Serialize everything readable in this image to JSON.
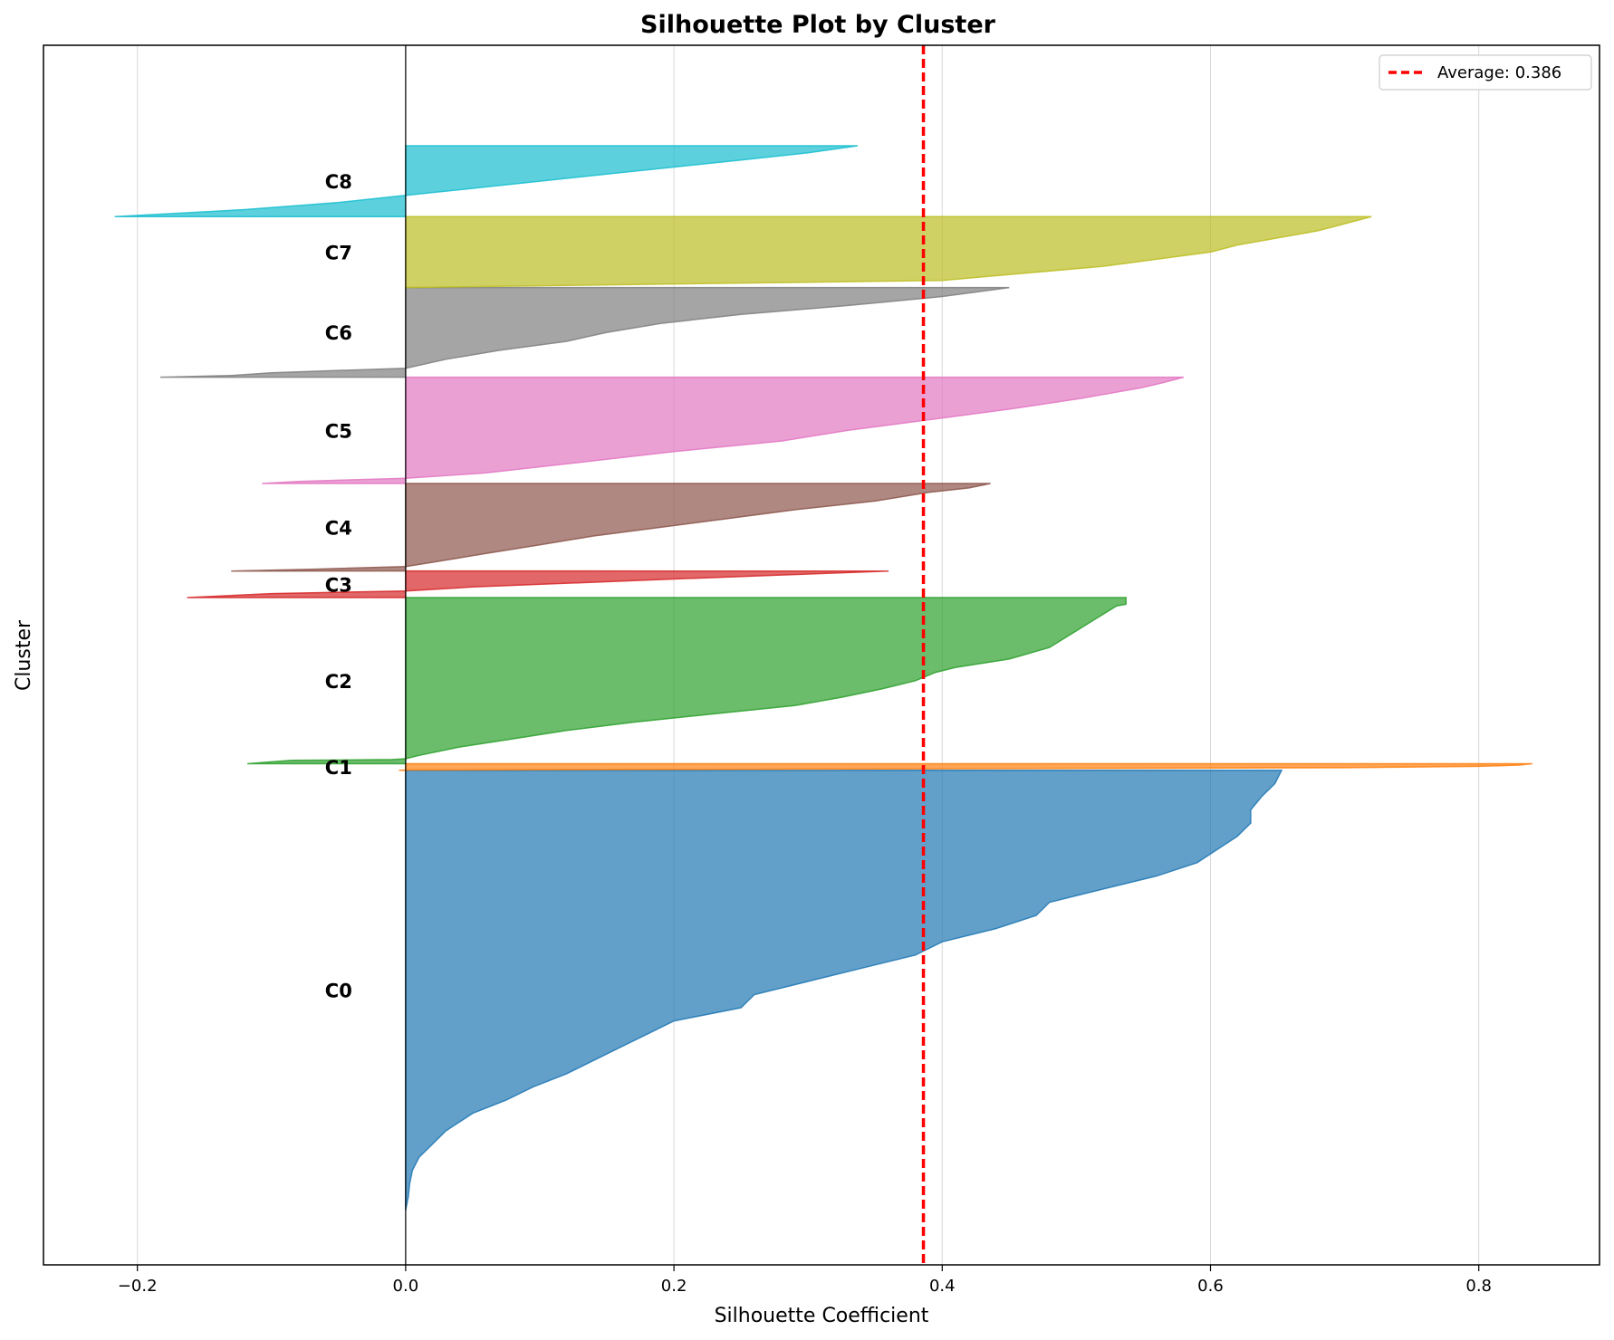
{
  "chart_data": {
    "type": "area",
    "title": "Silhouette Plot by Cluster",
    "xlabel": "Silhouette Coefficient",
    "ylabel": "Cluster",
    "xlim": [
      -0.27,
      0.89
    ],
    "x_ticks": [
      -0.2,
      0.0,
      0.2,
      0.4,
      0.6,
      0.8
    ],
    "x_tick_labels": [
      "−0.2",
      "0.0",
      "0.2",
      "0.4",
      "0.6",
      "0.8"
    ],
    "grid": "vertical",
    "legend_position": "upper right",
    "average": {
      "value": 0.386,
      "label": "Average: 0.386",
      "color": "#ff0000",
      "style": "dashed"
    },
    "clusters": [
      {
        "name": "C0",
        "color": "#1f77b4",
        "y_start": 0.0,
        "y_end": 0.397,
        "profile": [
          [
            0.0,
            0.653
          ],
          [
            0.03,
            0.648
          ],
          [
            0.06,
            0.638
          ],
          [
            0.09,
            0.63
          ],
          [
            0.12,
            0.63
          ],
          [
            0.15,
            0.62
          ],
          [
            0.18,
            0.605
          ],
          [
            0.21,
            0.59
          ],
          [
            0.24,
            0.56
          ],
          [
            0.27,
            0.52
          ],
          [
            0.3,
            0.48
          ],
          [
            0.33,
            0.47
          ],
          [
            0.36,
            0.44
          ],
          [
            0.39,
            0.4
          ],
          [
            0.42,
            0.38
          ],
          [
            0.45,
            0.34
          ],
          [
            0.48,
            0.3
          ],
          [
            0.51,
            0.26
          ],
          [
            0.54,
            0.25
          ],
          [
            0.57,
            0.2
          ],
          [
            0.6,
            0.18
          ],
          [
            0.63,
            0.16
          ],
          [
            0.66,
            0.14
          ],
          [
            0.69,
            0.12
          ],
          [
            0.72,
            0.095
          ],
          [
            0.75,
            0.075
          ],
          [
            0.78,
            0.05
          ],
          [
            0.8,
            0.04
          ],
          [
            0.82,
            0.03
          ],
          [
            0.85,
            0.02
          ],
          [
            0.88,
            0.01
          ],
          [
            0.91,
            0.005
          ],
          [
            0.94,
            0.003
          ],
          [
            0.97,
            0.002
          ],
          [
            1.0,
            0.0
          ]
        ]
      },
      {
        "name": "C1",
        "color": "#ff7f0e",
        "y_start": 0.397,
        "y_end": 0.403,
        "profile": [
          [
            0.0,
            0.84
          ],
          [
            0.2,
            0.83
          ],
          [
            0.4,
            0.8
          ],
          [
            0.6,
            0.7
          ],
          [
            0.8,
            0.3
          ],
          [
            0.95,
            0.0
          ],
          [
            1.0,
            -0.005
          ]
        ]
      },
      {
        "name": "C2",
        "color": "#2ca02c",
        "y_start": 0.403,
        "y_end": 0.553,
        "profile": [
          [
            0.0,
            0.537
          ],
          [
            0.04,
            0.537
          ],
          [
            0.05,
            0.53
          ],
          [
            0.1,
            0.52
          ],
          [
            0.15,
            0.51
          ],
          [
            0.2,
            0.5
          ],
          [
            0.25,
            0.49
          ],
          [
            0.3,
            0.48
          ],
          [
            0.37,
            0.45
          ],
          [
            0.42,
            0.41
          ],
          [
            0.45,
            0.395
          ],
          [
            0.5,
            0.38
          ],
          [
            0.55,
            0.355
          ],
          [
            0.6,
            0.325
          ],
          [
            0.65,
            0.29
          ],
          [
            0.7,
            0.23
          ],
          [
            0.75,
            0.17
          ],
          [
            0.8,
            0.12
          ],
          [
            0.85,
            0.08
          ],
          [
            0.9,
            0.04
          ],
          [
            0.95,
            0.01
          ],
          [
            0.97,
            0.0
          ],
          [
            0.975,
            -0.01
          ],
          [
            0.98,
            -0.085
          ],
          [
            1.0,
            -0.118
          ]
        ]
      },
      {
        "name": "C3",
        "color": "#d62728",
        "y_start": 0.553,
        "y_end": 0.577,
        "profile": [
          [
            0.0,
            0.36
          ],
          [
            0.3,
            0.2
          ],
          [
            0.6,
            0.05
          ],
          [
            0.75,
            0.0
          ],
          [
            0.85,
            -0.1
          ],
          [
            1.0,
            -0.163
          ]
        ]
      },
      {
        "name": "C4",
        "color": "#8c564b",
        "y_start": 0.577,
        "y_end": 0.656,
        "profile": [
          [
            0.0,
            0.436
          ],
          [
            0.05,
            0.42
          ],
          [
            0.1,
            0.39
          ],
          [
            0.2,
            0.35
          ],
          [
            0.3,
            0.29
          ],
          [
            0.4,
            0.24
          ],
          [
            0.5,
            0.19
          ],
          [
            0.6,
            0.14
          ],
          [
            0.7,
            0.1
          ],
          [
            0.8,
            0.06
          ],
          [
            0.9,
            0.02
          ],
          [
            0.95,
            0.0
          ],
          [
            0.98,
            -0.07
          ],
          [
            1.0,
            -0.13
          ]
        ]
      },
      {
        "name": "C5",
        "color": "#e377c2",
        "y_start": 0.656,
        "y_end": 0.752,
        "profile": [
          [
            0.0,
            0.58
          ],
          [
            0.05,
            0.565
          ],
          [
            0.1,
            0.548
          ],
          [
            0.2,
            0.503
          ],
          [
            0.3,
            0.45
          ],
          [
            0.4,
            0.39
          ],
          [
            0.5,
            0.33
          ],
          [
            0.6,
            0.28
          ],
          [
            0.7,
            0.2
          ],
          [
            0.8,
            0.13
          ],
          [
            0.9,
            0.06
          ],
          [
            0.95,
            0.0
          ],
          [
            0.98,
            -0.08
          ],
          [
            1.0,
            -0.107
          ]
        ]
      },
      {
        "name": "C6",
        "color": "#7f7f7f",
        "y_start": 0.752,
        "y_end": 0.833,
        "profile": [
          [
            0.0,
            0.45
          ],
          [
            0.1,
            0.4
          ],
          [
            0.2,
            0.33
          ],
          [
            0.3,
            0.25
          ],
          [
            0.4,
            0.19
          ],
          [
            0.5,
            0.15
          ],
          [
            0.6,
            0.12
          ],
          [
            0.7,
            0.07
          ],
          [
            0.8,
            0.03
          ],
          [
            0.9,
            0.0
          ],
          [
            0.95,
            -0.1
          ],
          [
            0.98,
            -0.13
          ],
          [
            1.0,
            -0.183
          ]
        ]
      },
      {
        "name": "C7",
        "color": "#bcbd22",
        "y_start": 0.833,
        "y_end": 0.897,
        "profile": [
          [
            0.0,
            0.72
          ],
          [
            0.1,
            0.7
          ],
          [
            0.2,
            0.68
          ],
          [
            0.3,
            0.65
          ],
          [
            0.4,
            0.62
          ],
          [
            0.5,
            0.6
          ],
          [
            0.6,
            0.56
          ],
          [
            0.7,
            0.52
          ],
          [
            0.8,
            0.46
          ],
          [
            0.9,
            0.4
          ],
          [
            1.0,
            0.0
          ]
        ]
      },
      {
        "name": "C8",
        "color": "#17becf",
        "y_start": 0.897,
        "y_end": 0.961,
        "profile": [
          [
            0.0,
            0.337
          ],
          [
            0.1,
            0.3
          ],
          [
            0.2,
            0.25
          ],
          [
            0.3,
            0.2
          ],
          [
            0.4,
            0.15
          ],
          [
            0.5,
            0.1
          ],
          [
            0.6,
            0.05
          ],
          [
            0.7,
            0.0
          ],
          [
            0.8,
            -0.05
          ],
          [
            0.9,
            -0.12
          ],
          [
            1.0,
            -0.217
          ]
        ]
      }
    ]
  }
}
